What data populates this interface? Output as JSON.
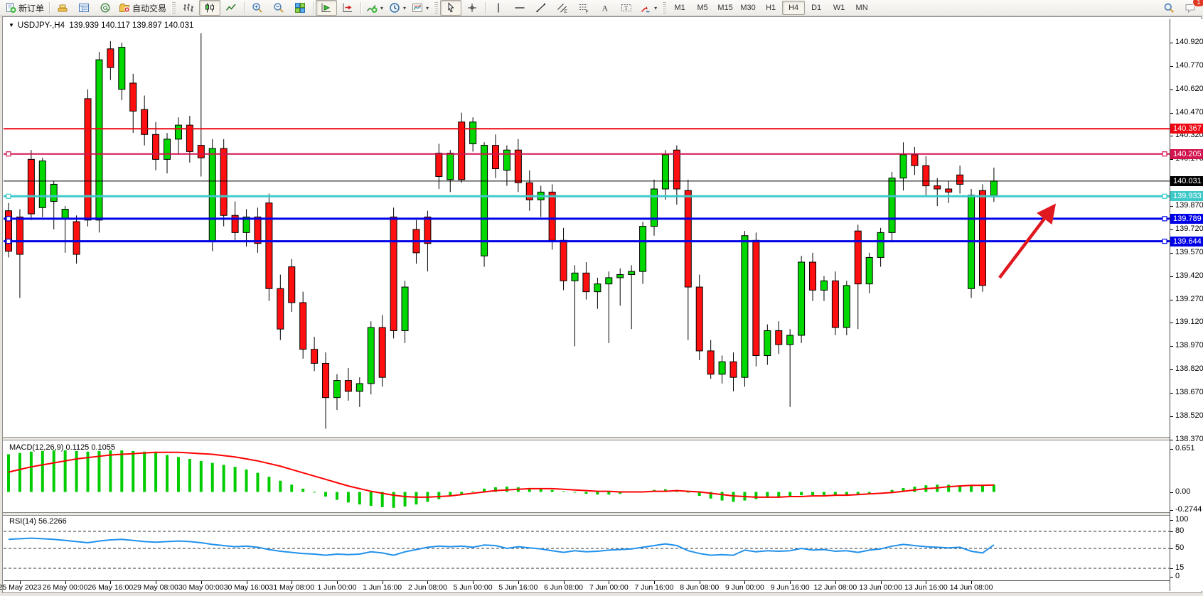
{
  "toolbar": {
    "groups": [
      {
        "items": [
          {
            "name": "new-order-button",
            "icon": "new-order-icon",
            "label": "新订单"
          }
        ]
      },
      {
        "items": [
          {
            "name": "market-watch-button",
            "icon": "market-watch-icon"
          },
          {
            "name": "data-window-button",
            "icon": "data-window-icon"
          },
          {
            "name": "navigator-button",
            "icon": "navigator-icon"
          },
          {
            "name": "autotrading-button",
            "icon": "autotrading-icon",
            "label": "自动交易"
          }
        ]
      },
      {
        "items": [
          {
            "name": "bar-chart-button",
            "icon": "bar-chart-icon"
          },
          {
            "name": "candlestick-chart-button",
            "icon": "candlestick-icon",
            "active": true
          },
          {
            "name": "line-chart-button",
            "icon": "line-chart-icon"
          }
        ]
      },
      {
        "items": [
          {
            "name": "zoom-in-button",
            "icon": "zoom-in-icon"
          },
          {
            "name": "zoom-out-button",
            "icon": "zoom-out-icon"
          },
          {
            "name": "tile-windows-button",
            "icon": "tile-windows-icon"
          }
        ]
      },
      {
        "items": [
          {
            "name": "auto-scroll-button",
            "icon": "auto-scroll-icon",
            "active": true
          },
          {
            "name": "chart-shift-button",
            "icon": "chart-shift-icon"
          }
        ]
      },
      {
        "items": [
          {
            "name": "indicators-button",
            "icon": "indicators-icon",
            "dropdown": true
          },
          {
            "name": "periods-button",
            "icon": "periods-icon",
            "dropdown": true
          },
          {
            "name": "templates-button",
            "icon": "templates-icon",
            "dropdown": true
          }
        ]
      },
      {
        "items": [
          {
            "name": "cursor-button",
            "icon": "cursor-icon",
            "active": true
          },
          {
            "name": "crosshair-button",
            "icon": "crosshair-icon"
          }
        ]
      },
      {
        "items": [
          {
            "name": "vertical-line-button",
            "icon": "vline-icon"
          },
          {
            "name": "horizontal-line-button",
            "icon": "hline-icon"
          },
          {
            "name": "trendline-button",
            "icon": "trendline-icon"
          },
          {
            "name": "equidistant-channel-button",
            "icon": "channel-icon"
          },
          {
            "name": "fibonacci-button",
            "icon": "fibo-icon"
          },
          {
            "name": "text-button",
            "icon": "text-icon"
          },
          {
            "name": "text-label-button",
            "icon": "label-icon"
          },
          {
            "name": "arrows-button",
            "icon": "arrows-icon",
            "dropdown": true
          }
        ]
      }
    ],
    "timeframes": {
      "items": [
        "M1",
        "M5",
        "M15",
        "M30",
        "H1",
        "H4",
        "D1",
        "W1",
        "MN"
      ],
      "active": "H4"
    },
    "right": [
      {
        "name": "search-button",
        "icon": "search-icon"
      },
      {
        "name": "chat-button",
        "icon": "chat-icon",
        "badge": "1"
      }
    ]
  },
  "chart": {
    "title": {
      "symbol": "USDJPY-,H4",
      "ohlc": "139.939 140.117 139.897 140.031"
    },
    "price_axis": {
      "ticks": [
        "140.920",
        "140.770",
        "140.620",
        "140.470",
        "140.320",
        "140.170",
        "139.870",
        "139.720",
        "139.570",
        "139.420",
        "139.270",
        "139.120",
        "138.970",
        "138.820",
        "138.670",
        "138.520",
        "138.370"
      ]
    },
    "price_lines": [
      {
        "label": "140.367",
        "price": 140.367,
        "color": "#ee0712",
        "width": 2,
        "handles": false
      },
      {
        "label": "140.205",
        "price": 140.205,
        "color": "#d2154e",
        "width": 2,
        "handles": true
      },
      {
        "label": "140.031",
        "price": 140.031,
        "color": "#000000",
        "width": 1,
        "handles": false
      },
      {
        "label": "139.933",
        "price": 139.933,
        "color": "#3fc9c9",
        "width": 3,
        "handles": true
      },
      {
        "label": "139.789",
        "price": 139.789,
        "color": "#0000e6",
        "width": 3,
        "handles": true
      },
      {
        "label": "139.644",
        "price": 139.644,
        "color": "#0000e6",
        "width": 3,
        "handles": true
      }
    ],
    "time_axis": [
      "25 May 2023",
      "26 May 00:00",
      "26 May 16:00",
      "29 May 08:00",
      "30 May 00:00",
      "30 May 16:00",
      "31 May 08:00",
      "1 Jun 00:00",
      "1 Jun 16:00",
      "2 Jun 08:00",
      "5 Jun 00:00",
      "5 Jun 16:00",
      "6 Jun 08:00",
      "7 Jun 00:00",
      "7 Jun 16:00",
      "8 Jun 08:00",
      "9 Jun 00:00",
      "9 Jun 16:00",
      "12 Jun 08:00",
      "13 Jun 00:00",
      "13 Jun 16:00",
      "14 Jun 08:00"
    ]
  },
  "indicators": {
    "macd": {
      "label": "MACD(12,26,9) 0.1125 0.1055",
      "scale": [
        "0.651",
        "0.00",
        "-0.2744"
      ],
      "scale_values": [
        0.651,
        0,
        -0.2744
      ]
    },
    "rsi": {
      "label": "RSI(14) 56.2266",
      "scale": [
        "100",
        "80",
        "50",
        "15",
        "0"
      ],
      "scale_values": [
        100,
        80,
        50,
        15,
        0
      ]
    }
  },
  "chart_data": {
    "type": "candlestick",
    "symbol": "USDJPY-",
    "timeframe": "H4",
    "title": "USDJPY-,H4 139.939 140.117 139.897 140.031",
    "last_ohlc": {
      "open": 139.939,
      "high": 140.117,
      "low": 139.897,
      "close": 140.031
    },
    "y_range": [
      138.37,
      141.07
    ],
    "x_labels": [
      "25 May 2023",
      "26 May 00:00",
      "26 May 16:00",
      "29 May 08:00",
      "30 May 00:00",
      "30 May 16:00",
      "31 May 08:00",
      "1 Jun 00:00",
      "1 Jun 16:00",
      "2 Jun 08:00",
      "5 Jun 00:00",
      "5 Jun 16:00",
      "6 Jun 08:00",
      "7 Jun 00:00",
      "7 Jun 16:00",
      "8 Jun 08:00",
      "9 Jun 00:00",
      "9 Jun 16:00",
      "12 Jun 08:00",
      "13 Jun 00:00",
      "13 Jun 16:00",
      "14 Jun 08:00"
    ],
    "candles": [
      [
        139.84,
        139.89,
        139.54,
        139.58
      ],
      [
        139.8,
        139.85,
        139.28,
        139.56
      ],
      [
        140.17,
        140.23,
        139.78,
        139.82
      ],
      [
        139.86,
        140.18,
        139.8,
        140.16
      ],
      [
        139.9,
        140.03,
        139.72,
        140.01
      ],
      [
        139.79,
        139.87,
        139.57,
        139.85
      ],
      [
        139.77,
        139.81,
        139.5,
        139.56
      ],
      [
        140.56,
        140.62,
        139.74,
        139.78
      ],
      [
        139.78,
        140.86,
        139.7,
        140.81
      ],
      [
        140.88,
        140.93,
        140.68,
        140.76
      ],
      [
        140.62,
        140.92,
        140.55,
        140.89
      ],
      [
        140.66,
        140.72,
        140.34,
        140.48
      ],
      [
        140.49,
        140.58,
        140.26,
        140.33
      ],
      [
        140.33,
        140.41,
        140.1,
        140.17
      ],
      [
        140.17,
        140.34,
        140.08,
        140.3
      ],
      [
        140.3,
        140.44,
        140.2,
        140.39
      ],
      [
        140.39,
        140.45,
        140.15,
        140.22
      ],
      [
        140.26,
        140.98,
        140.06,
        140.18
      ],
      [
        139.64,
        140.3,
        139.58,
        140.24
      ],
      [
        140.24,
        140.3,
        139.74,
        139.81
      ],
      [
        139.81,
        139.9,
        139.65,
        139.7
      ],
      [
        139.7,
        139.85,
        139.61,
        139.8
      ],
      [
        139.8,
        139.86,
        139.57,
        139.63
      ],
      [
        139.89,
        139.95,
        139.26,
        139.34
      ],
      [
        139.34,
        139.43,
        139.01,
        139.08
      ],
      [
        139.48,
        139.53,
        139.19,
        139.25
      ],
      [
        139.25,
        139.32,
        138.89,
        138.95
      ],
      [
        138.95,
        139.03,
        138.81,
        138.86
      ],
      [
        138.86,
        138.93,
        138.44,
        138.64
      ],
      [
        138.64,
        138.79,
        138.56,
        138.75
      ],
      [
        138.75,
        138.83,
        138.62,
        138.68
      ],
      [
        138.68,
        138.77,
        138.58,
        138.73
      ],
      [
        138.73,
        139.13,
        138.66,
        139.09
      ],
      [
        139.09,
        139.17,
        138.71,
        138.77
      ],
      [
        139.8,
        139.86,
        139.02,
        139.07
      ],
      [
        139.07,
        139.39,
        138.99,
        139.35
      ],
      [
        139.72,
        139.78,
        139.5,
        139.57
      ],
      [
        139.8,
        139.84,
        139.45,
        139.63
      ],
      [
        140.21,
        140.27,
        139.98,
        140.06
      ],
      [
        140.04,
        140.23,
        139.96,
        140.21
      ],
      [
        140.41,
        140.47,
        140.02,
        140.04
      ],
      [
        140.27,
        140.44,
        140.22,
        140.41
      ],
      [
        139.55,
        140.28,
        139.48,
        140.26
      ],
      [
        140.26,
        140.33,
        140.05,
        140.11
      ],
      [
        140.1,
        140.26,
        140.0,
        140.23
      ],
      [
        140.23,
        140.3,
        139.96,
        140.02
      ],
      [
        140.02,
        140.1,
        139.84,
        139.91
      ],
      [
        139.91,
        140.0,
        139.8,
        139.96
      ],
      [
        139.96,
        140.01,
        139.59,
        139.65
      ],
      [
        139.65,
        139.73,
        139.33,
        139.39
      ],
      [
        139.39,
        139.49,
        138.97,
        139.44
      ],
      [
        139.44,
        139.51,
        139.27,
        139.32
      ],
      [
        139.32,
        139.41,
        139.21,
        139.37
      ],
      [
        139.37,
        139.45,
        138.99,
        139.41
      ],
      [
        139.41,
        139.47,
        139.23,
        139.43
      ],
      [
        139.43,
        139.49,
        139.08,
        139.45
      ],
      [
        139.45,
        139.77,
        139.37,
        139.74
      ],
      [
        139.74,
        140.04,
        139.68,
        139.98
      ],
      [
        139.98,
        140.23,
        139.91,
        140.2
      ],
      [
        140.23,
        140.26,
        139.88,
        139.98
      ],
      [
        139.97,
        140.04,
        139.01,
        139.35
      ],
      [
        139.35,
        139.43,
        138.88,
        138.94
      ],
      [
        138.94,
        139.01,
        138.76,
        138.79
      ],
      [
        138.79,
        138.91,
        138.73,
        138.87
      ],
      [
        138.87,
        138.93,
        138.68,
        138.77
      ],
      [
        138.77,
        139.71,
        138.71,
        139.68
      ],
      [
        139.65,
        139.7,
        138.84,
        138.91
      ],
      [
        138.91,
        139.11,
        138.85,
        139.07
      ],
      [
        139.07,
        139.13,
        138.92,
        138.98
      ],
      [
        138.98,
        139.08,
        138.58,
        139.04
      ],
      [
        139.04,
        139.55,
        138.99,
        139.51
      ],
      [
        139.51,
        139.57,
        139.26,
        139.33
      ],
      [
        139.33,
        139.42,
        139.26,
        139.39
      ],
      [
        139.39,
        139.45,
        139.04,
        139.09
      ],
      [
        139.09,
        139.39,
        139.04,
        139.36
      ],
      [
        139.71,
        139.75,
        139.08,
        139.37
      ],
      [
        139.37,
        139.57,
        139.31,
        139.54
      ],
      [
        139.54,
        139.73,
        139.48,
        139.7
      ],
      [
        139.7,
        140.09,
        139.64,
        140.05
      ],
      [
        140.05,
        140.28,
        139.97,
        140.2
      ],
      [
        140.2,
        140.25,
        140.07,
        140.13
      ],
      [
        140.13,
        140.19,
        139.94,
        140.0
      ],
      [
        140.0,
        140.05,
        139.87,
        139.98
      ],
      [
        139.98,
        140.03,
        139.89,
        139.96
      ],
      [
        140.07,
        140.13,
        139.95,
        140.01
      ],
      [
        139.34,
        139.98,
        139.28,
        139.94
      ],
      [
        139.97,
        140.01,
        139.32,
        139.36
      ],
      [
        139.939,
        140.117,
        139.897,
        140.031
      ]
    ],
    "macd": {
      "params": [
        12,
        26,
        9
      ],
      "current": {
        "macd": 0.1125,
        "signal": 0.1055
      },
      "range": [
        -0.2744,
        0.651
      ],
      "histogram": [
        0.57,
        0.59,
        0.61,
        0.62,
        0.63,
        0.63,
        0.62,
        0.61,
        0.62,
        0.63,
        0.63,
        0.62,
        0.61,
        0.59,
        0.56,
        0.53,
        0.5,
        0.47,
        0.44,
        0.41,
        0.38,
        0.34,
        0.29,
        0.23,
        0.17,
        0.11,
        0.05,
        -0.01,
        -0.07,
        -0.12,
        -0.16,
        -0.19,
        -0.21,
        -0.23,
        -0.24,
        -0.22,
        -0.19,
        -0.15,
        -0.11,
        -0.07,
        -0.03,
        0.01,
        0.05,
        0.07,
        0.08,
        0.07,
        0.06,
        0.05,
        0.03,
        0.01,
        -0.01,
        -0.03,
        -0.04,
        -0.04,
        -0.03,
        -0.01,
        0.01,
        0.03,
        0.04,
        0.03,
        -0.01,
        -0.06,
        -0.1,
        -0.13,
        -0.15,
        -0.13,
        -0.11,
        -0.09,
        -0.08,
        -0.07,
        -0.05,
        -0.05,
        -0.05,
        -0.06,
        -0.05,
        -0.04,
        -0.02,
        0.0,
        0.03,
        0.06,
        0.08,
        0.1,
        0.11,
        0.11,
        0.1,
        0.1,
        0.11,
        0.1125
      ],
      "signal": [
        0.3,
        0.34,
        0.38,
        0.41,
        0.44,
        0.47,
        0.5,
        0.52,
        0.54,
        0.56,
        0.57,
        0.58,
        0.59,
        0.6,
        0.6,
        0.6,
        0.59,
        0.58,
        0.57,
        0.55,
        0.53,
        0.5,
        0.47,
        0.43,
        0.39,
        0.34,
        0.29,
        0.24,
        0.19,
        0.14,
        0.09,
        0.05,
        0.01,
        -0.02,
        -0.05,
        -0.07,
        -0.08,
        -0.08,
        -0.07,
        -0.06,
        -0.04,
        -0.02,
        0.0,
        0.02,
        0.03,
        0.04,
        0.05,
        0.05,
        0.05,
        0.04,
        0.03,
        0.02,
        0.01,
        0.01,
        0.0,
        0.0,
        0.0,
        0.01,
        0.01,
        0.02,
        0.01,
        0.0,
        -0.02,
        -0.04,
        -0.06,
        -0.07,
        -0.08,
        -0.08,
        -0.08,
        -0.07,
        -0.07,
        -0.06,
        -0.06,
        -0.05,
        -0.05,
        -0.04,
        -0.03,
        -0.02,
        -0.01,
        0.01,
        0.03,
        0.05,
        0.06,
        0.08,
        0.09,
        0.1,
        0.1,
        0.1055
      ]
    },
    "rsi": {
      "period": 14,
      "current": 56.2266,
      "levels": [
        80,
        50,
        15
      ],
      "range": [
        0,
        100
      ],
      "values": [
        66,
        67,
        68,
        67,
        66,
        64,
        62,
        60,
        63,
        65,
        66,
        64,
        62,
        61,
        62,
        63,
        62,
        60,
        57,
        55,
        53,
        54,
        52,
        48,
        45,
        43,
        41,
        40,
        38,
        40,
        39,
        40,
        44,
        42,
        38,
        44,
        48,
        52,
        54,
        53,
        54,
        52,
        56,
        55,
        50,
        53,
        51,
        49,
        46,
        43,
        46,
        44,
        45,
        47,
        48,
        49,
        52,
        55,
        58,
        55,
        46,
        41,
        38,
        39,
        38,
        47,
        44,
        46,
        45,
        46,
        50,
        47,
        48,
        45,
        46,
        43,
        47,
        49,
        54,
        57,
        55,
        53,
        52,
        51,
        52,
        45,
        42,
        56.2266
      ]
    },
    "horizontal_levels": [
      140.367,
      140.205,
      140.031,
      139.933,
      139.789,
      139.644
    ],
    "annotations": [
      {
        "type": "arrow",
        "name": "trend-arrow",
        "color": "#e01820",
        "from": {
          "bar": 87.5,
          "price": 139.41
        },
        "to": {
          "bar": 92.3,
          "price": 139.87
        }
      }
    ]
  },
  "colors": {
    "bull": "#00d800",
    "bear": "#ff0f0f",
    "candle_border": "#000000",
    "macd_histogram": "#00cc00",
    "macd_signal": "#ff0000",
    "rsi_line": "#2191ec",
    "axis_text": "#000000",
    "background": "#ffffff"
  }
}
